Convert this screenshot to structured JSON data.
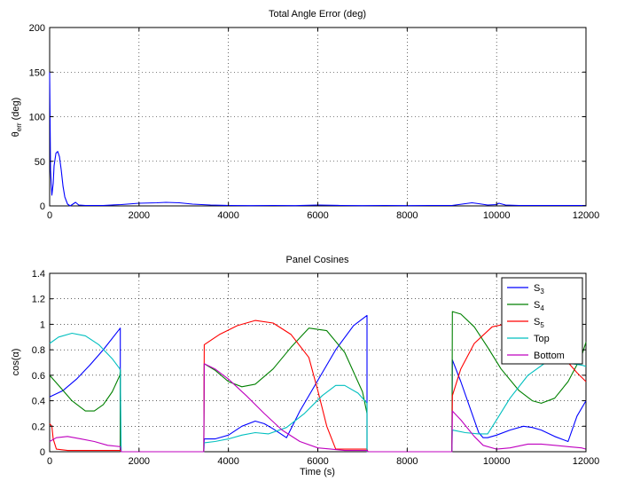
{
  "chart_data": [
    {
      "type": "line",
      "title": "Total Angle Error (deg)",
      "xlabel": "",
      "ylabel": "θ_err (deg)",
      "ylabel_parts": {
        "main": "θ",
        "sub": "err",
        "rest": " (deg)"
      },
      "xlim": [
        0,
        12000
      ],
      "ylim": [
        0,
        200
      ],
      "xticks": [
        "0",
        "2000",
        "4000",
        "6000",
        "8000",
        "10000",
        "12000"
      ],
      "yticks": [
        "0",
        "50",
        "100",
        "150",
        "200"
      ],
      "grid": true,
      "series": [
        {
          "color": "#0000ff",
          "x": [
            0,
            20,
            50,
            80,
            100,
            140,
            180,
            220,
            260,
            300,
            340,
            400,
            460,
            520,
            580,
            650,
            800,
            1200,
            1600,
            2000,
            2400,
            2600,
            2900,
            3200,
            3600,
            4000,
            4500,
            5000,
            5500,
            6000,
            6500,
            7000,
            7500,
            8000,
            8500,
            9000,
            9300,
            9450,
            9600,
            9800,
            10000,
            10050,
            10200,
            10500,
            11000,
            11500,
            12000
          ],
          "y": [
            150,
            40,
            12,
            25,
            45,
            59,
            61,
            55,
            40,
            22,
            10,
            2,
            0,
            2,
            4,
            1,
            0.5,
            0.5,
            1.5,
            3,
            3.5,
            4,
            3.5,
            2,
            1,
            0.5,
            0.3,
            0.5,
            0.3,
            1,
            0.5,
            0.3,
            0.5,
            0.3,
            0.5,
            0.5,
            2.5,
            3.5,
            2.5,
            1,
            1.5,
            3,
            1,
            0.5,
            0.5,
            0.5,
            0.5
          ]
        }
      ]
    },
    {
      "type": "line",
      "title": "Panel Cosines",
      "xlabel": "Time (s)",
      "ylabel": "cos(α)",
      "xlim": [
        0,
        12000
      ],
      "ylim": [
        0,
        1.4
      ],
      "xticks": [
        "0",
        "2000",
        "4000",
        "6000",
        "8000",
        "10000",
        "12000"
      ],
      "yticks": [
        "0",
        "0.2",
        "0.4",
        "0.6",
        "0.8",
        "1",
        "1.2",
        "1.4"
      ],
      "grid": true,
      "legend_position": "top-right",
      "series": [
        {
          "name": "S3",
          "name_parts": {
            "main": "S",
            "sub": "3"
          },
          "color": "#0000ff",
          "x": [
            0,
            300,
            600,
            900,
            1200,
            1580,
            1580,
            1600,
            3450,
            3460,
            3700,
            4000,
            4300,
            4600,
            4800,
            5000,
            5300,
            5600,
            6000,
            6400,
            6800,
            7100,
            7100,
            7120,
            9000,
            9010,
            9200,
            9400,
            9600,
            9700,
            9800,
            10000,
            10300,
            10600,
            10800,
            11000,
            11300,
            11600,
            11800,
            12000
          ],
          "y": [
            0.43,
            0.48,
            0.57,
            0.68,
            0.8,
            0.97,
            0,
            0,
            0,
            0.1,
            0.1,
            0.13,
            0.2,
            0.24,
            0.22,
            0.18,
            0.11,
            0.32,
            0.56,
            0.8,
            0.99,
            1.07,
            0,
            0,
            0,
            0.72,
            0.55,
            0.35,
            0.15,
            0.11,
            0.11,
            0.13,
            0.17,
            0.2,
            0.19,
            0.17,
            0.12,
            0.08,
            0.28,
            0.4
          ]
        },
        {
          "name": "S4",
          "name_parts": {
            "main": "S",
            "sub": "4"
          },
          "color": "#008000",
          "x": [
            0,
            200,
            500,
            800,
            1000,
            1200,
            1400,
            1570,
            1580,
            1580,
            1600,
            3450,
            3460,
            3700,
            4000,
            4300,
            4600,
            5000,
            5400,
            5800,
            6200,
            6600,
            7000,
            7100,
            7100,
            7120,
            9000,
            9010,
            9200,
            9500,
            9800,
            10100,
            10500,
            10800,
            11000,
            11300,
            11600,
            11900,
            12000
          ],
          "y": [
            0.6,
            0.52,
            0.4,
            0.32,
            0.32,
            0.37,
            0.47,
            0.6,
            0.64,
            0,
            0,
            0,
            0.69,
            0.64,
            0.55,
            0.51,
            0.53,
            0.65,
            0.82,
            0.97,
            0.95,
            0.78,
            0.47,
            0.3,
            0,
            0,
            0,
            1.1,
            1.08,
            0.98,
            0.82,
            0.65,
            0.48,
            0.4,
            0.38,
            0.42,
            0.55,
            0.75,
            0.86
          ]
        },
        {
          "name": "S5",
          "name_parts": {
            "main": "S",
            "sub": "5"
          },
          "color": "#ff0000",
          "x": [
            0,
            50,
            80,
            150,
            400,
            800,
            1200,
            1580,
            1600,
            3450,
            3460,
            3800,
            4200,
            4600,
            5000,
            5400,
            5800,
            6000,
            6200,
            6400,
            7100,
            7120,
            9000,
            9010,
            9200,
            9500,
            9900,
            10300,
            10700,
            11100,
            11500,
            11800,
            12000
          ],
          "y": [
            0.22,
            0.2,
            0.1,
            0.02,
            0.01,
            0.01,
            0.01,
            0.01,
            0,
            0,
            0.84,
            0.92,
            0.99,
            1.03,
            1.01,
            0.92,
            0.74,
            0.48,
            0.2,
            0.02,
            0.02,
            0,
            0,
            0.44,
            0.65,
            0.85,
            0.98,
            1.01,
            0.96,
            0.86,
            0.74,
            0.62,
            0.55
          ]
        },
        {
          "name": "Top",
          "color": "#00bfbf",
          "x": [
            0,
            200,
            500,
            800,
            1100,
            1400,
            1570,
            1580,
            1600,
            3450,
            3460,
            3700,
            4000,
            4300,
            4600,
            4900,
            5300,
            5700,
            6100,
            6400,
            6600,
            6900,
            7100,
            7100,
            7120,
            9000,
            9010,
            9300,
            9600,
            9800,
            10000,
            10300,
            10700,
            11100,
            11500,
            11900,
            12000
          ],
          "y": [
            0.85,
            0.9,
            0.93,
            0.91,
            0.84,
            0.73,
            0.65,
            0.63,
            0,
            0,
            0.07,
            0.08,
            0.1,
            0.13,
            0.15,
            0.14,
            0.19,
            0.3,
            0.44,
            0.52,
            0.52,
            0.46,
            0.38,
            0,
            0,
            0,
            0.17,
            0.15,
            0.14,
            0.14,
            0.25,
            0.42,
            0.6,
            0.7,
            0.7,
            0.68,
            0.67
          ]
        },
        {
          "name": "Bottom",
          "color": "#bf00bf",
          "x": [
            0,
            150,
            400,
            700,
            1000,
            1300,
            1580,
            1600,
            3450,
            3460,
            3700,
            4000,
            4400,
            4800,
            5200,
            5600,
            6000,
            6300,
            6600,
            7100,
            7120,
            9000,
            9010,
            9200,
            9500,
            9700,
            10000,
            10300,
            10700,
            11000,
            11300,
            11600,
            11900,
            12000
          ],
          "y": [
            0.08,
            0.11,
            0.12,
            0.1,
            0.08,
            0.05,
            0.04,
            0,
            0,
            0.69,
            0.65,
            0.57,
            0.44,
            0.3,
            0.17,
            0.08,
            0.03,
            0.02,
            0.01,
            0.01,
            0,
            0,
            0.32,
            0.25,
            0.12,
            0.05,
            0.02,
            0.03,
            0.06,
            0.06,
            0.05,
            0.04,
            0.03,
            0.02
          ]
        }
      ]
    }
  ]
}
